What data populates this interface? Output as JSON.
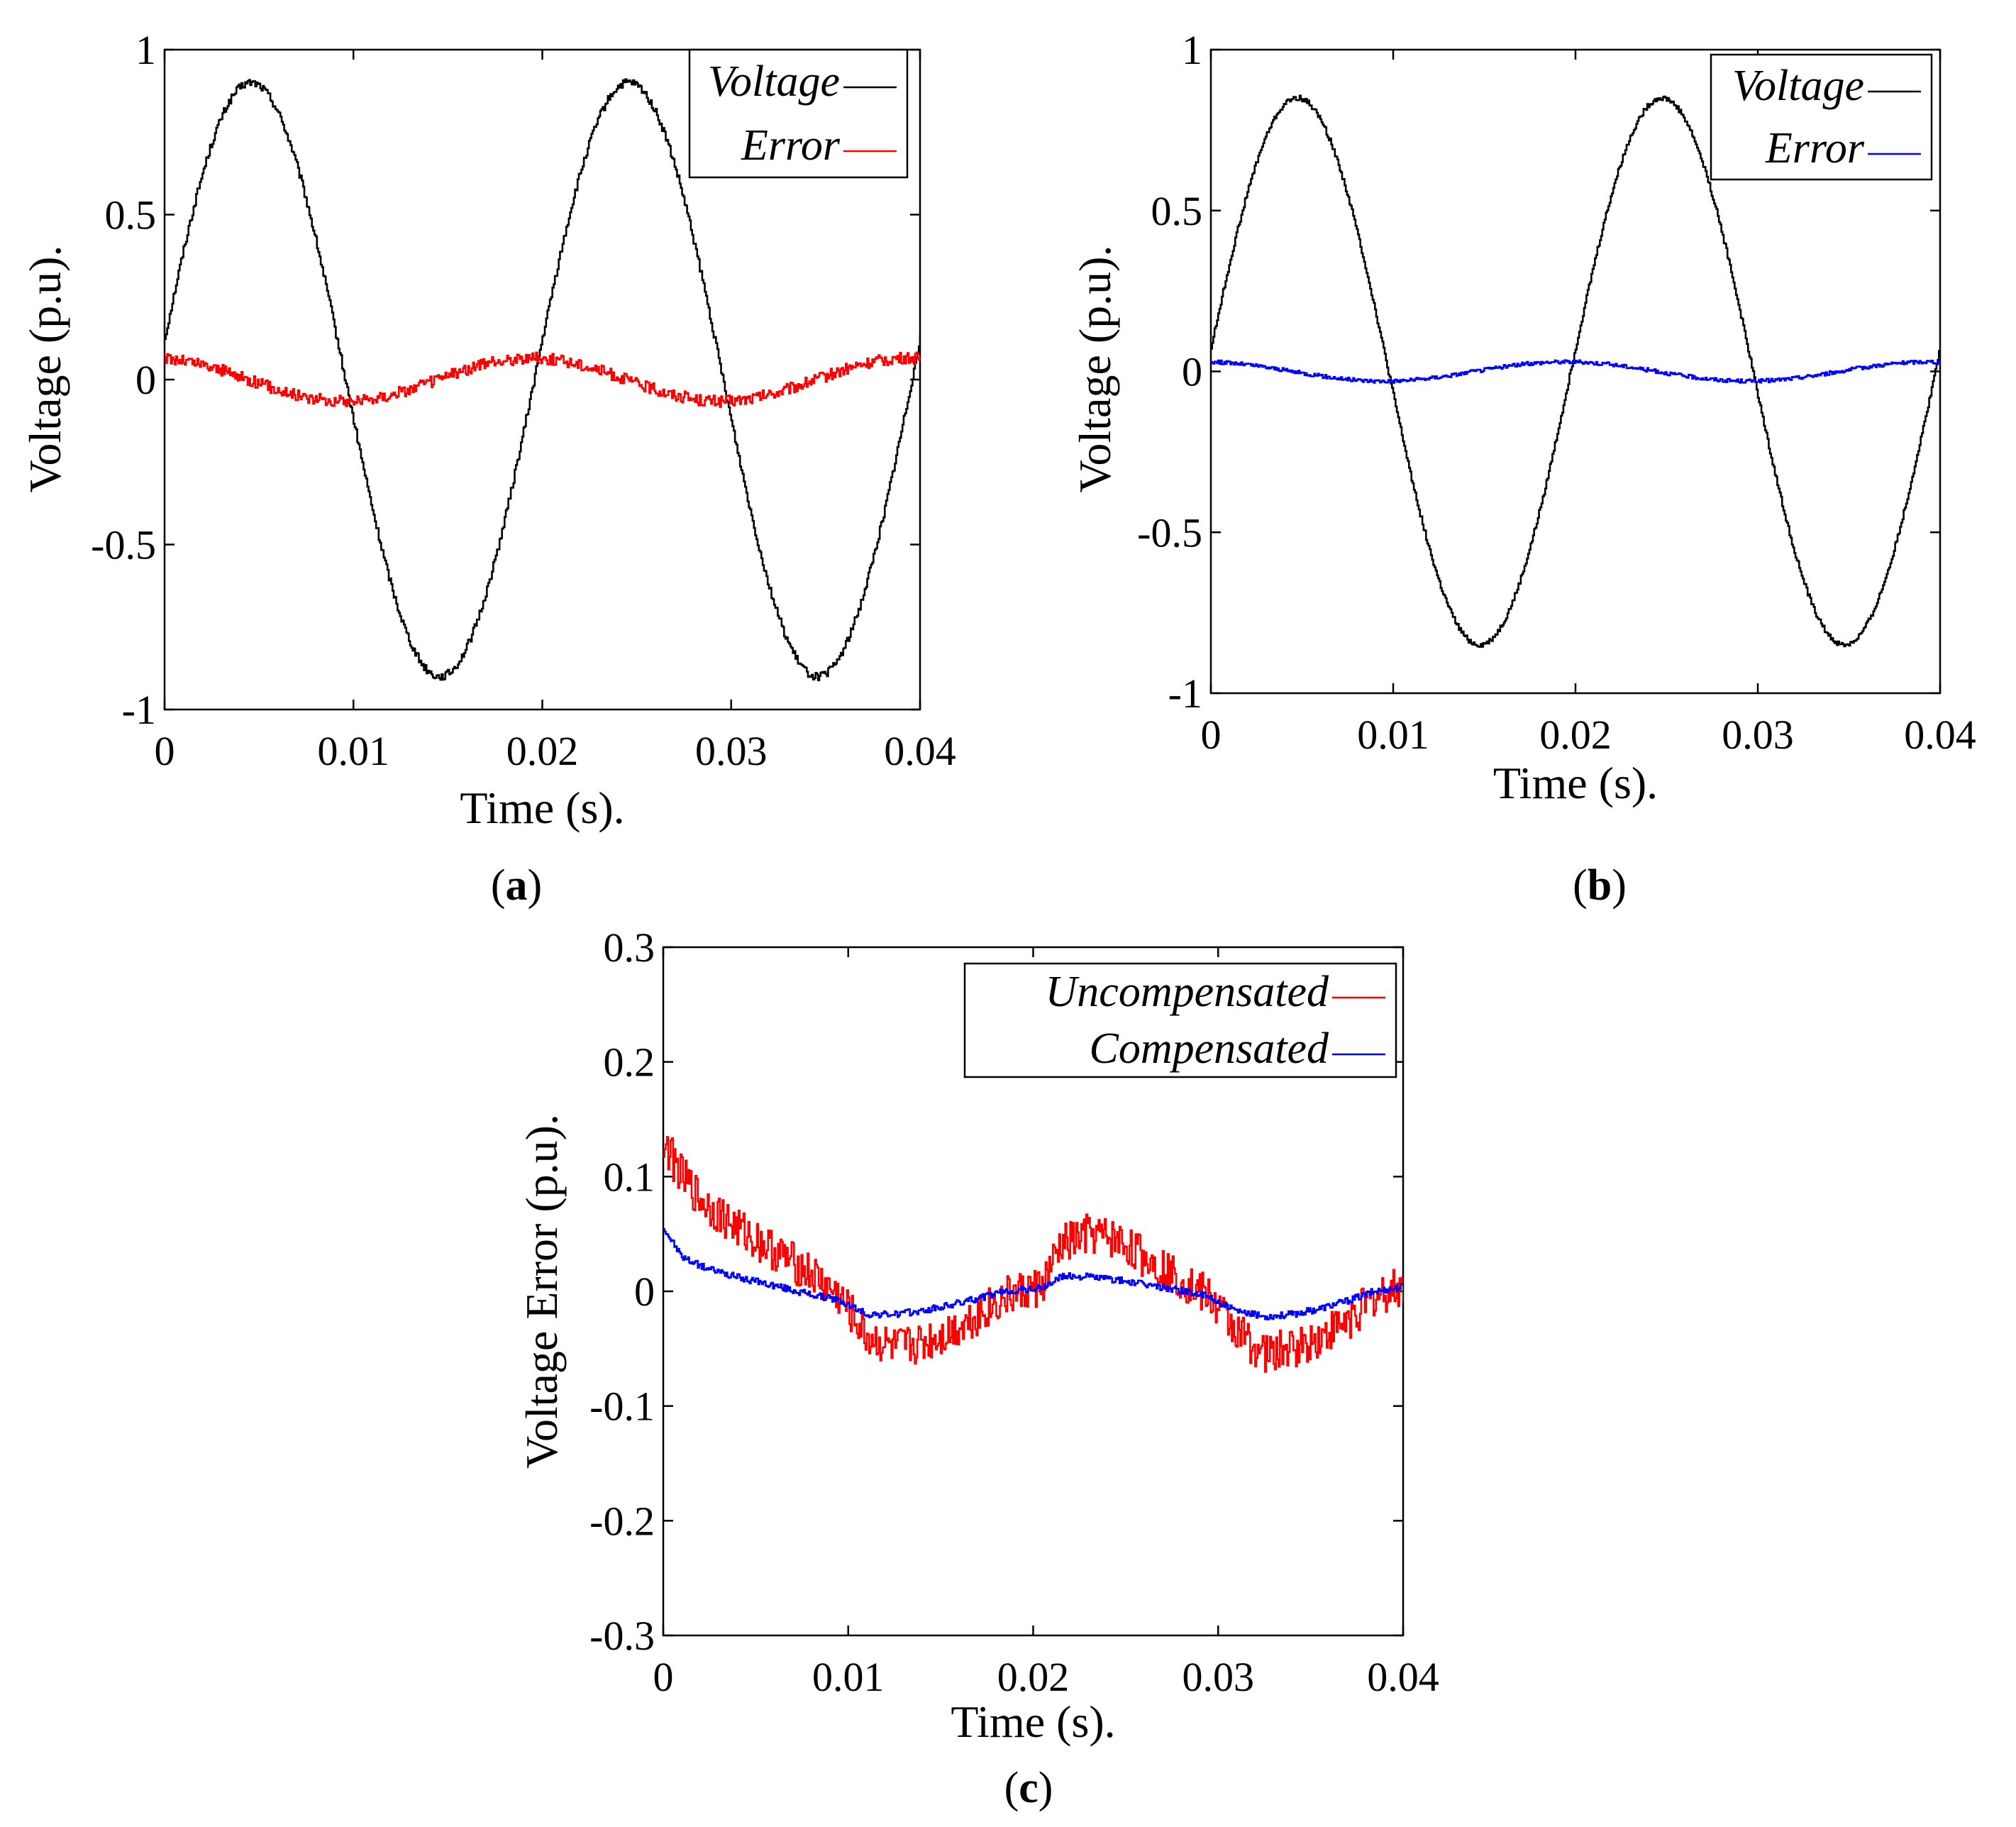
{
  "chart_data": [
    {
      "id": "a",
      "type": "line",
      "caption": "a",
      "xlabel": "Time (s).",
      "ylabel": "Voltage (p.u).",
      "xlim": [
        0,
        0.04
      ],
      "ylim": [
        -1,
        1
      ],
      "xticks": [
        0,
        0.01,
        0.02,
        0.03,
        0.04
      ],
      "xtick_labels": [
        "0",
        "0.01",
        "0.02",
        "0.03",
        "0.04"
      ],
      "yticks": [
        1,
        0.5,
        0,
        -0.5,
        -1
      ],
      "ytick_labels": [
        "1",
        "0.5",
        "0",
        "-0.5",
        "-1"
      ],
      "legend_position": "top-right",
      "series": [
        {
          "name": "Voltage",
          "color": "#000000",
          "kind": "sine",
          "amplitude": 0.9,
          "frequency_hz": 50,
          "phase_deg": 8,
          "noise": 0.012
        },
        {
          "name": "Error",
          "color": "#ff0000",
          "kind": "sine",
          "amplitude": 0.065,
          "frequency_hz": 50,
          "phase_deg": 100,
          "noise": 0.018
        }
      ]
    },
    {
      "id": "b",
      "type": "line",
      "caption": "b",
      "xlabel": "Time (s).",
      "ylabel": "Voltage (p.u).",
      "xlim": [
        0,
        0.04
      ],
      "ylim": [
        -1,
        1
      ],
      "xticks": [
        0,
        0.01,
        0.02,
        0.03,
        0.04
      ],
      "xtick_labels": [
        "0",
        "0.01",
        "0.02",
        "0.03",
        "0.04"
      ],
      "yticks": [
        1,
        0.5,
        0,
        -0.5,
        -1
      ],
      "ytick_labels": [
        "1",
        "0.5",
        "0",
        "-0.5",
        "-1"
      ],
      "legend_position": "top-right",
      "series": [
        {
          "name": "Voltage",
          "color": "#000000",
          "kind": "sine",
          "amplitude": 0.85,
          "frequency_hz": 50,
          "phase_deg": 5,
          "noise": 0.008
        },
        {
          "name": "Error",
          "color": "#0000ff",
          "kind": "sine",
          "amplitude": 0.03,
          "frequency_hz": 50,
          "phase_deg": 100,
          "noise": 0.006
        }
      ]
    },
    {
      "id": "c",
      "type": "line",
      "caption": "c",
      "xlabel": "Time (s).",
      "ylabel": "Voltage Error (p.u).",
      "xlim": [
        0,
        0.04
      ],
      "ylim": [
        -0.3,
        0.3
      ],
      "xticks": [
        0,
        0.01,
        0.02,
        0.03,
        0.04
      ],
      "xtick_labels": [
        "0",
        "0.01",
        "0.02",
        "0.03",
        "0.04"
      ],
      "yticks": [
        0.3,
        0.2,
        0.1,
        0,
        -0.1,
        -0.2,
        -0.3
      ],
      "ytick_labels": [
        "0.3",
        "0.2",
        "0.1",
        "0",
        "-0.1",
        "-0.2",
        "-0.3"
      ],
      "legend_position": "top-right",
      "series": [
        {
          "name": "Uncompensated",
          "color": "#ff0000",
          "kind": "points",
          "x": [
            0,
            0.001,
            0.002,
            0.004,
            0.006,
            0.008,
            0.0095,
            0.011,
            0.0125,
            0.014,
            0.0155,
            0.017,
            0.0185,
            0.0205,
            0.0215,
            0.023,
            0.0245,
            0.026,
            0.028,
            0.0295,
            0.031,
            0.0325,
            0.034,
            0.0355,
            0.037,
            0.0385,
            0.04
          ],
          "y": [
            0.13,
            0.1,
            0.08,
            0.055,
            0.035,
            0.015,
            -0.005,
            -0.04,
            -0.05,
            -0.045,
            -0.035,
            -0.02,
            -0.005,
            0.005,
            0.04,
            0.05,
            0.045,
            0.03,
            0.01,
            -0.005,
            -0.035,
            -0.055,
            -0.05,
            -0.04,
            -0.025,
            -0.005,
            0.005
          ],
          "ripple": 0.018
        },
        {
          "name": "Compensated",
          "color": "#0000ff",
          "kind": "points",
          "x": [
            0,
            0.001,
            0.002,
            0.004,
            0.006,
            0.008,
            0.0095,
            0.011,
            0.0125,
            0.014,
            0.0155,
            0.017,
            0.0185,
            0.0205,
            0.0215,
            0.023,
            0.0245,
            0.026,
            0.028,
            0.0295,
            0.031,
            0.0325,
            0.034,
            0.0355,
            0.037,
            0.0385,
            0.04
          ],
          "y": [
            0.055,
            0.03,
            0.022,
            0.012,
            0.005,
            -0.003,
            -0.008,
            -0.02,
            -0.02,
            -0.017,
            -0.012,
            -0.006,
            0.0,
            0.003,
            0.013,
            0.013,
            0.01,
            0.006,
            0.001,
            -0.005,
            -0.018,
            -0.022,
            -0.02,
            -0.015,
            -0.008,
            0.0,
            0.004
          ],
          "ripple": 0.003
        }
      ]
    }
  ]
}
